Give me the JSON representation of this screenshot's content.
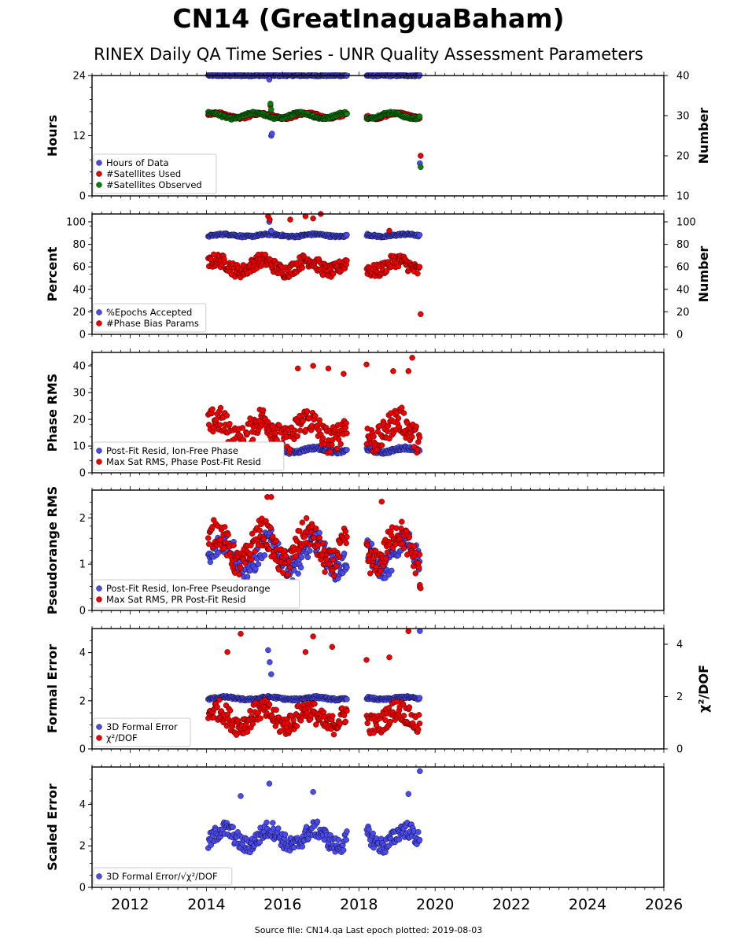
{
  "title": "CN14 (GreatInaguaBaham)",
  "subtitle": "RINEX Daily QA Time Series - UNR Quality Assessment Parameters",
  "footer": "Source file: CN14.qa Last epoch plotted: 2019-08-03",
  "colors": {
    "blue": "#4a4aee",
    "red": "#ee0000",
    "green": "#0a800a",
    "edge": "#000000"
  },
  "chart_data": [
    {
      "type": "scatter",
      "ylabel": "Hours",
      "ylabel_right": "Number",
      "ylim": [
        0,
        24
      ],
      "yticks": [
        "0",
        "12",
        "24"
      ],
      "yticks_values": [
        0,
        12,
        24
      ],
      "ylim_right": [
        10,
        40
      ],
      "yticks_right": [
        "10",
        "20",
        "30",
        "40"
      ],
      "yticks_right_values": [
        10,
        20,
        30,
        40
      ],
      "legend": "lower-left",
      "series": [
        {
          "name": "Hours of Data",
          "color": "blue",
          "axis": "left",
          "gen": {
            "base": 24,
            "spread": 0,
            "noise": 0.15,
            "outliers": [
              [
                2015.65,
                23.2
              ],
              [
                2015.7,
                12.0
              ],
              [
                2015.72,
                12.4
              ],
              [
                2019.6,
                6.5
              ]
            ]
          }
        },
        {
          "name": "#Satellites Used",
          "color": "red",
          "axis": "right",
          "gen": {
            "base": 30,
            "spread": 0.6,
            "noise": 0.3,
            "outliers": [
              [
                2015.68,
                32.5
              ],
              [
                2019.62,
                20
              ]
            ]
          }
        },
        {
          "name": "#Satellites Observed",
          "color": "green",
          "axis": "right",
          "gen": {
            "base": 30,
            "spread": 0.7,
            "noise": 0.3,
            "outliers": [
              [
                2015.68,
                33
              ],
              [
                2015.7,
                31.5
              ],
              [
                2019.62,
                17.2
              ]
            ]
          }
        }
      ]
    },
    {
      "type": "scatter",
      "ylabel": "Percent",
      "ylabel_right": "Number",
      "ylim": [
        0,
        107
      ],
      "yticks": [
        "0",
        "20",
        "40",
        "60",
        "80",
        "100"
      ],
      "yticks_values": [
        0,
        20,
        40,
        60,
        80,
        100
      ],
      "ylim_right": [
        0,
        107
      ],
      "yticks_right": [
        "0",
        "20",
        "40",
        "60",
        "80",
        "100"
      ],
      "yticks_right_values": [
        0,
        20,
        40,
        60,
        80,
        100
      ],
      "legend": "lower-left",
      "series": [
        {
          "name": "%Epochs Accepted",
          "color": "blue",
          "axis": "left",
          "gen": {
            "base": 88,
            "spread": 1,
            "noise": 1,
            "outliers": [
              [
                2015.65,
                100
              ],
              [
                2015.7,
                92
              ]
            ]
          }
        },
        {
          "name": "#Phase Bias Params",
          "color": "red",
          "axis": "right",
          "gen": {
            "base": 61,
            "spread": 5,
            "noise": 6,
            "outliers": [
              [
                2015.62,
                105
              ],
              [
                2015.66,
                102
              ],
              [
                2016.2,
                102
              ],
              [
                2016.6,
                105
              ],
              [
                2016.8,
                103
              ],
              [
                2017.0,
                107
              ],
              [
                2018.8,
                92
              ],
              [
                2019.62,
                18
              ]
            ]
          }
        }
      ]
    },
    {
      "type": "scatter",
      "ylabel": "Phase RMS",
      "ylim": [
        0,
        45
      ],
      "yticks": [
        "0",
        "10",
        "20",
        "30",
        "40"
      ],
      "yticks_values": [
        0,
        10,
        20,
        30,
        40
      ],
      "legend": "lower-left",
      "series": [
        {
          "name": "Post-Fit Resid, Ion-Free Phase",
          "color": "blue",
          "axis": "left",
          "gen": {
            "base": 8.5,
            "spread": 0.8,
            "noise": 0.7,
            "outliers": []
          }
        },
        {
          "name": "Max Sat RMS, Phase Post-Fit Resid",
          "color": "red",
          "axis": "left",
          "gen": {
            "base": 16,
            "spread": 4,
            "noise": 5,
            "outliers": [
              [
                2016.4,
                39
              ],
              [
                2016.8,
                40
              ],
              [
                2017.2,
                39
              ],
              [
                2018.2,
                40.5
              ],
              [
                2018.9,
                38
              ],
              [
                2019.3,
                38
              ],
              [
                2019.4,
                43
              ],
              [
                2017.6,
                37
              ]
            ]
          }
        }
      ]
    },
    {
      "type": "scatter",
      "ylabel": "Pseudorange RMS",
      "ylim": [
        0,
        2.6
      ],
      "yticks": [
        "0",
        "1",
        "2"
      ],
      "yticks_values": [
        0,
        1,
        2
      ],
      "legend": "lower-left",
      "series": [
        {
          "name": "Post-Fit Resid, Ion-Free Pseudorange",
          "color": "blue",
          "axis": "left",
          "gen": {
            "base": 1.2,
            "spread": 0.3,
            "noise": 0.25,
            "outliers": [
              [
                2019.6,
                0.5
              ]
            ]
          }
        },
        {
          "name": "Max Sat RMS, PR Post-Fit Resid",
          "color": "red",
          "axis": "left",
          "gen": {
            "base": 1.35,
            "spread": 0.35,
            "noise": 0.3,
            "outliers": [
              [
                2015.6,
                2.45
              ],
              [
                2015.7,
                2.45
              ],
              [
                2018.6,
                2.35
              ],
              [
                2019.6,
                0.55
              ],
              [
                2019.62,
                0.48
              ]
            ]
          }
        }
      ]
    },
    {
      "type": "scatter",
      "ylabel": "Formal Error",
      "ylabel_right": "χ²/DOF",
      "ylim": [
        0,
        5
      ],
      "yticks": [
        "0",
        "2",
        "4"
      ],
      "yticks_values": [
        0,
        2,
        4
      ],
      "ylim_right": [
        0,
        4.6
      ],
      "yticks_right": [
        "0",
        "2",
        "4"
      ],
      "yticks_right_values": [
        0,
        2,
        4
      ],
      "legend": "lower-left",
      "series": [
        {
          "name": "3D Formal Error",
          "color": "blue",
          "axis": "left",
          "gen": {
            "base": 2.1,
            "spread": 0.05,
            "noise": 0.05,
            "outliers": [
              [
                2015.62,
                4.1
              ],
              [
                2015.66,
                3.6
              ],
              [
                2015.7,
                3.1
              ],
              [
                2019.6,
                4.9
              ]
            ]
          }
        },
        {
          "name": "χ²/DOF",
          "color": "red",
          "axis": "right",
          "gen": {
            "base": 1.2,
            "spread": 0.3,
            "noise": 0.4,
            "outliers": [
              [
                2014.55,
                3.7
              ],
              [
                2014.9,
                4.4
              ],
              [
                2016.6,
                3.7
              ],
              [
                2016.8,
                4.3
              ],
              [
                2017.3,
                3.9
              ],
              [
                2019.3,
                4.5
              ],
              [
                2018.2,
                3.4
              ],
              [
                2018.8,
                3.5
              ]
            ]
          }
        }
      ]
    },
    {
      "type": "scatter",
      "ylabel": "Scaled Error",
      "ylim": [
        0,
        5.8
      ],
      "yticks": [
        "0",
        "2",
        "4"
      ],
      "yticks_values": [
        0,
        2,
        4
      ],
      "legend": "lower-left",
      "series": [
        {
          "name": "3D Formal Error/√χ²/DOF",
          "color": "blue",
          "axis": "left",
          "gen": {
            "base": 2.4,
            "spread": 0.4,
            "noise": 0.4,
            "outliers": [
              [
                2015.65,
                5.0
              ],
              [
                2016.8,
                4.6
              ],
              [
                2019.3,
                4.5
              ],
              [
                2019.6,
                5.6
              ],
              [
                2014.9,
                4.4
              ]
            ]
          }
        }
      ]
    }
  ],
  "x_axis": {
    "xlim": [
      2011,
      2026
    ],
    "ticks": [
      "2012",
      "2014",
      "2016",
      "2018",
      "2020",
      "2022",
      "2024",
      "2026"
    ],
    "tick_values": [
      2012,
      2014,
      2016,
      2018,
      2020,
      2022,
      2024,
      2026
    ],
    "data_range": [
      2014.05,
      2019.6
    ],
    "gap": [
      2017.7,
      2018.2
    ]
  }
}
